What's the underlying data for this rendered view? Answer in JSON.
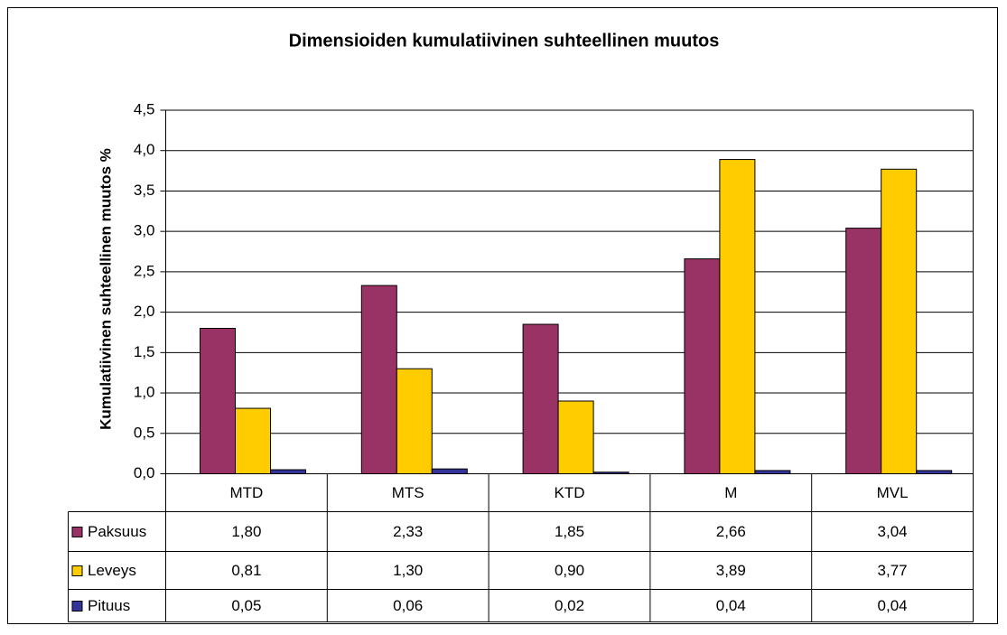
{
  "chart_data": {
    "type": "bar",
    "title": "Dimensioiden kumulatiivinen suhteellinen muutos",
    "y_label": "Kumulatiivinen suhteellinen muutos %",
    "categories": [
      "MTD",
      "MTS",
      "KTD",
      "M",
      "MVL"
    ],
    "series": [
      {
        "name": "Paksuus",
        "color": "#993366",
        "values": [
          1.8,
          2.33,
          1.85,
          2.66,
          3.04
        ],
        "value_labels": [
          "1,80",
          "2,33",
          "1,85",
          "2,66",
          "3,04"
        ]
      },
      {
        "name": "Leveys",
        "color": "#ffcc00",
        "values": [
          0.81,
          1.3,
          0.9,
          3.89,
          3.77
        ],
        "value_labels": [
          "0,81",
          "1,30",
          "0,90",
          "3,89",
          "3,77"
        ]
      },
      {
        "name": "Pituus",
        "color": "#333399",
        "values": [
          0.05,
          0.06,
          0.02,
          0.04,
          0.04
        ],
        "value_labels": [
          "0,05",
          "0,06",
          "0,02",
          "0,04",
          "0,04"
        ]
      }
    ],
    "ylim": [
      0,
      4.5
    ],
    "yticks": [
      {
        "value": 0,
        "label": "0,0"
      },
      {
        "value": 0.5,
        "label": "0,5"
      },
      {
        "value": 1,
        "label": "1,0"
      },
      {
        "value": 1.5,
        "label": "1,5"
      },
      {
        "value": 2,
        "label": "2,0"
      },
      {
        "value": 2.5,
        "label": "2,5"
      },
      {
        "value": 3,
        "label": "3,0"
      },
      {
        "value": 3.5,
        "label": "3,5"
      },
      {
        "value": 4,
        "label": "4,0"
      },
      {
        "value": 4.5,
        "label": "4,5"
      }
    ],
    "grid": true
  }
}
